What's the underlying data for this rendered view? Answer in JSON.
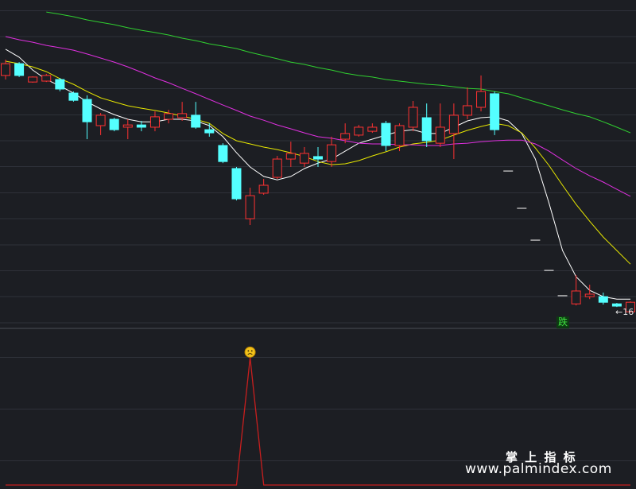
{
  "chart_data": [
    {
      "type": "candlestick",
      "ylim": [
        15.5,
        30
      ],
      "up_color": "#ff3232",
      "down_color": "#54ffff",
      "flat_color": "#d8d8d8",
      "open": [
        26.66,
        27.18,
        26.37,
        26.41,
        26.48,
        25.88,
        25.6,
        24.44,
        24.72,
        24.37,
        24.47,
        24.37,
        24.72,
        24.79,
        24.9,
        24.26,
        23.56,
        22.54,
        20.32,
        21.45,
        22.15,
        22.96,
        22.78,
        23.07,
        22.85,
        23.84,
        24.02,
        24.19,
        24.54,
        23.56,
        24.37,
        24.79,
        23.66,
        24.09,
        24.9,
        25.25,
        25.85,
        22.43,
        20.78,
        19.37,
        18.03,
        16.91,
        16.55,
        16.87,
        16.87,
        16.55,
        16.2
      ],
      "close": [
        27.18,
        26.66,
        26.59,
        26.66,
        26.06,
        25.56,
        24.61,
        24.9,
        24.26,
        24.47,
        24.37,
        24.83,
        24.97,
        24.97,
        24.37,
        24.12,
        22.85,
        21.2,
        21.34,
        21.8,
        22.96,
        23.21,
        23.21,
        22.96,
        23.59,
        24.09,
        24.37,
        24.37,
        23.56,
        24.44,
        25.25,
        23.77,
        24.37,
        24.9,
        25.32,
        25.95,
        24.26,
        22.43,
        20.78,
        19.37,
        18.03,
        16.91,
        17.12,
        16.98,
        16.62,
        16.45,
        16.62
      ],
      "high": [
        27.36,
        27.25,
        26.62,
        26.73,
        26.55,
        25.95,
        25.78,
        25.0,
        24.79,
        24.72,
        24.65,
        25.07,
        25.14,
        25.49,
        25.49,
        24.54,
        23.66,
        22.61,
        21.69,
        22.08,
        23.1,
        23.73,
        23.49,
        23.49,
        23.95,
        24.54,
        24.47,
        24.54,
        24.65,
        24.54,
        25.53,
        25.42,
        25.42,
        25.42,
        26.13,
        26.66,
        25.95,
        22.43,
        20.78,
        19.37,
        18.03,
        16.91,
        17.82,
        17.4,
        17.05,
        16.59,
        16.66
      ],
      "low": [
        26.48,
        26.59,
        26.34,
        26.37,
        25.96,
        25.5,
        23.84,
        24.02,
        24.19,
        23.84,
        24.19,
        24.19,
        24.54,
        24.65,
        24.3,
        23.95,
        22.78,
        21.13,
        20.04,
        21.38,
        22.08,
        22.61,
        22.61,
        22.61,
        22.61,
        23.66,
        23.95,
        24.12,
        23.31,
        23.31,
        24.19,
        23.49,
        23.49,
        22.96,
        24.72,
        25.07,
        24.02,
        22.43,
        20.78,
        19.37,
        18.03,
        16.91,
        16.48,
        16.76,
        16.52,
        16.41,
        16.2
      ],
      "series": [
        {
          "color": "#ffffff",
          "values": [
            27.82,
            27.47,
            26.9,
            26.48,
            26.2,
            25.88,
            25.49,
            25.18,
            24.93,
            24.72,
            24.61,
            24.61,
            24.72,
            24.72,
            24.65,
            24.44,
            23.95,
            23.24,
            22.61,
            22.19,
            22.04,
            22.19,
            22.54,
            22.78,
            22.96,
            23.31,
            23.66,
            23.84,
            24.02,
            24.19,
            24.26,
            24.09,
            24.09,
            24.37,
            24.65,
            24.79,
            24.83,
            24.65,
            24.09,
            22.96,
            21.02,
            18.91,
            17.75,
            17.15,
            16.87,
            16.76,
            16.76
          ]
        },
        {
          "color": "#e8e800",
          "values": [
            27.29,
            27.18,
            27.04,
            26.83,
            26.52,
            26.27,
            25.95,
            25.67,
            25.49,
            25.32,
            25.21,
            25.11,
            25.0,
            24.86,
            24.72,
            24.54,
            24.09,
            23.77,
            23.63,
            23.49,
            23.38,
            23.24,
            23.07,
            22.85,
            22.71,
            22.75,
            22.89,
            23.1,
            23.28,
            23.49,
            23.63,
            23.7,
            23.8,
            24.02,
            24.23,
            24.4,
            24.54,
            24.44,
            24.12,
            23.45,
            22.68,
            21.8,
            20.95,
            20.21,
            19.51,
            18.91,
            18.31
          ]
        },
        {
          "color": "#e030e0",
          "values": [
            28.38,
            28.24,
            28.13,
            27.99,
            27.89,
            27.78,
            27.61,
            27.43,
            27.25,
            27.04,
            26.8,
            26.55,
            26.34,
            26.09,
            25.85,
            25.6,
            25.35,
            25.11,
            24.86,
            24.68,
            24.47,
            24.3,
            24.12,
            23.95,
            23.88,
            23.77,
            23.66,
            23.63,
            23.63,
            23.59,
            23.59,
            23.56,
            23.56,
            23.63,
            23.66,
            23.73,
            23.77,
            23.8,
            23.8,
            23.63,
            23.31,
            22.92,
            22.54,
            22.22,
            21.94,
            21.62,
            21.31
          ]
        },
        {
          "color": "#30d030",
          "values": [
            null,
            null,
            null,
            29.47,
            29.37,
            29.26,
            29.12,
            29.01,
            28.91,
            28.77,
            28.66,
            28.56,
            28.45,
            28.31,
            28.2,
            28.06,
            27.96,
            27.85,
            27.68,
            27.54,
            27.4,
            27.25,
            27.15,
            27.01,
            26.9,
            26.76,
            26.66,
            26.59,
            26.48,
            26.41,
            26.34,
            26.27,
            26.23,
            26.16,
            26.09,
            26.06,
            25.95,
            25.85,
            25.67,
            25.49,
            25.32,
            25.14,
            24.97,
            24.83,
            24.61,
            24.37,
            24.12
          ]
        }
      ],
      "annotations": [
        "跌",
        "←16"
      ]
    },
    {
      "type": "line",
      "ylim": [
        0,
        1.23
      ],
      "color": "#c81e1e",
      "values": [
        0,
        0,
        0,
        0,
        0,
        0,
        0,
        0,
        0,
        0,
        0,
        0,
        0,
        0,
        0,
        0,
        0,
        0,
        1,
        0,
        0,
        0,
        0,
        0,
        0,
        0,
        0,
        0,
        0,
        0,
        0,
        0,
        0,
        0,
        0,
        0,
        0,
        0,
        0,
        0,
        0,
        0,
        0,
        0,
        0,
        0,
        0
      ]
    }
  ],
  "watermark": {
    "title": "掌 上 指 标",
    "url": "www.palmindex.com"
  }
}
